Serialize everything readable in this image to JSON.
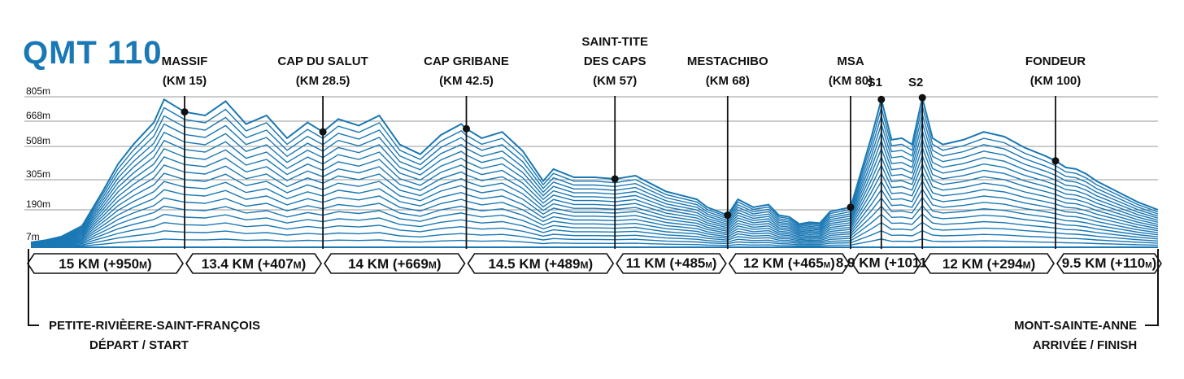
{
  "chart_data": {
    "type": "area",
    "title": "QMT 110",
    "color": "#1a78b4",
    "y_ticks": [
      {
        "value": 805,
        "label": "805m"
      },
      {
        "value": 668,
        "label": "668m"
      },
      {
        "value": 508,
        "label": "508m"
      },
      {
        "value": 305,
        "label": "305m"
      },
      {
        "value": 190,
        "label": "190m"
      },
      {
        "value": 7,
        "label": "7m"
      }
    ],
    "xlim": [
      0,
      110
    ],
    "profile": [
      [
        0,
        7
      ],
      [
        1.5,
        20
      ],
      [
        3,
        40
      ],
      [
        5,
        100
      ],
      [
        7,
        260
      ],
      [
        8.5,
        400
      ],
      [
        10,
        520
      ],
      [
        12,
        660
      ],
      [
        13,
        790
      ],
      [
        15,
        720
      ],
      [
        17,
        700
      ],
      [
        19,
        780
      ],
      [
        21,
        650
      ],
      [
        23,
        700
      ],
      [
        25,
        560
      ],
      [
        27,
        660
      ],
      [
        28.5,
        600
      ],
      [
        30,
        680
      ],
      [
        32,
        640
      ],
      [
        34,
        700
      ],
      [
        36,
        520
      ],
      [
        38,
        460
      ],
      [
        40,
        580
      ],
      [
        42,
        650
      ],
      [
        42.5,
        620
      ],
      [
        44,
        560
      ],
      [
        46,
        600
      ],
      [
        48,
        480
      ],
      [
        50,
        300
      ],
      [
        51,
        370
      ],
      [
        53,
        320
      ],
      [
        55,
        320
      ],
      [
        57,
        310
      ],
      [
        59,
        330
      ],
      [
        60.5,
        290
      ],
      [
        62,
        260
      ],
      [
        63,
        250
      ],
      [
        65,
        230
      ],
      [
        66,
        200
      ],
      [
        68,
        160
      ],
      [
        69,
        230
      ],
      [
        70.5,
        200
      ],
      [
        72,
        210
      ],
      [
        73,
        160
      ],
      [
        74,
        150
      ],
      [
        75,
        110
      ],
      [
        76,
        120
      ],
      [
        77,
        115
      ],
      [
        78,
        180
      ],
      [
        80,
        200
      ],
      [
        82,
        560
      ],
      [
        83,
        790
      ],
      [
        84,
        550
      ],
      [
        85,
        560
      ],
      [
        86,
        520
      ],
      [
        87,
        800
      ],
      [
        88,
        560
      ],
      [
        89,
        520
      ],
      [
        91,
        550
      ],
      [
        93,
        600
      ],
      [
        95,
        570
      ],
      [
        97,
        500
      ],
      [
        99,
        450
      ],
      [
        100,
        420
      ],
      [
        101,
        380
      ],
      [
        102,
        370
      ],
      [
        103,
        340
      ],
      [
        104,
        300
      ],
      [
        106,
        260
      ],
      [
        108,
        220
      ],
      [
        110,
        190
      ]
    ],
    "checkpoints": [
      {
        "name": "MASSIF",
        "km_label": "(KM 15)",
        "km": 15,
        "alt": 720
      },
      {
        "name": "CAP DU SALUT",
        "km_label": "(KM 28.5)",
        "km": 28.5,
        "alt": 600
      },
      {
        "name": "CAP GRIBANE",
        "km_label": "(KM 42.5)",
        "km": 42.5,
        "alt": 620
      },
      {
        "name": "SAINT-TITE",
        "name2": "DES CAPS",
        "km_label": "(KM 57)",
        "km": 57,
        "alt": 310
      },
      {
        "name": "MESTACHIBO",
        "km_label": "(KM 68)",
        "km": 68,
        "alt": 160
      },
      {
        "name": "MSA",
        "km_label": "(KM 80)",
        "km": 80,
        "alt": 200
      },
      {
        "name": "S1",
        "km_label": "",
        "km": 83,
        "alt": 790
      },
      {
        "name": "S2",
        "km_label": "",
        "km": 87,
        "alt": 800
      },
      {
        "name": "FONDEUR",
        "km_label": "(KM 100)",
        "km": 100,
        "alt": 420
      }
    ],
    "segments": [
      {
        "main": "15 KM (+950",
        "unit": "M",
        "close": ")"
      },
      {
        "main": "13.4 KM (+407",
        "unit": "M",
        "close": ")"
      },
      {
        "main": "14 KM (+669",
        "unit": "M",
        "close": ")"
      },
      {
        "main": "14.5 KM (+489",
        "unit": "M",
        "close": ")"
      },
      {
        "main": "11 KM (+485",
        "unit": "M",
        "close": ")"
      },
      {
        "main": "12 KM (+465",
        "unit": "M",
        "close": ")"
      },
      {
        "main": "8.9 KM (+1011",
        "unit": "M",
        "close": ")"
      },
      {
        "main": "12 KM (+294",
        "unit": "M",
        "close": ")"
      },
      {
        "main": "9.5 KM (+110",
        "unit": "M",
        "close": ")"
      }
    ],
    "start": {
      "line1": "PETITE-RIVIÈERE-SAINT-FRANÇOIS",
      "line2": "DÉPART / START"
    },
    "finish": {
      "line1": "MONT-SAINTE-ANNE",
      "line2": "ARRIVÉE / FINISH"
    }
  }
}
